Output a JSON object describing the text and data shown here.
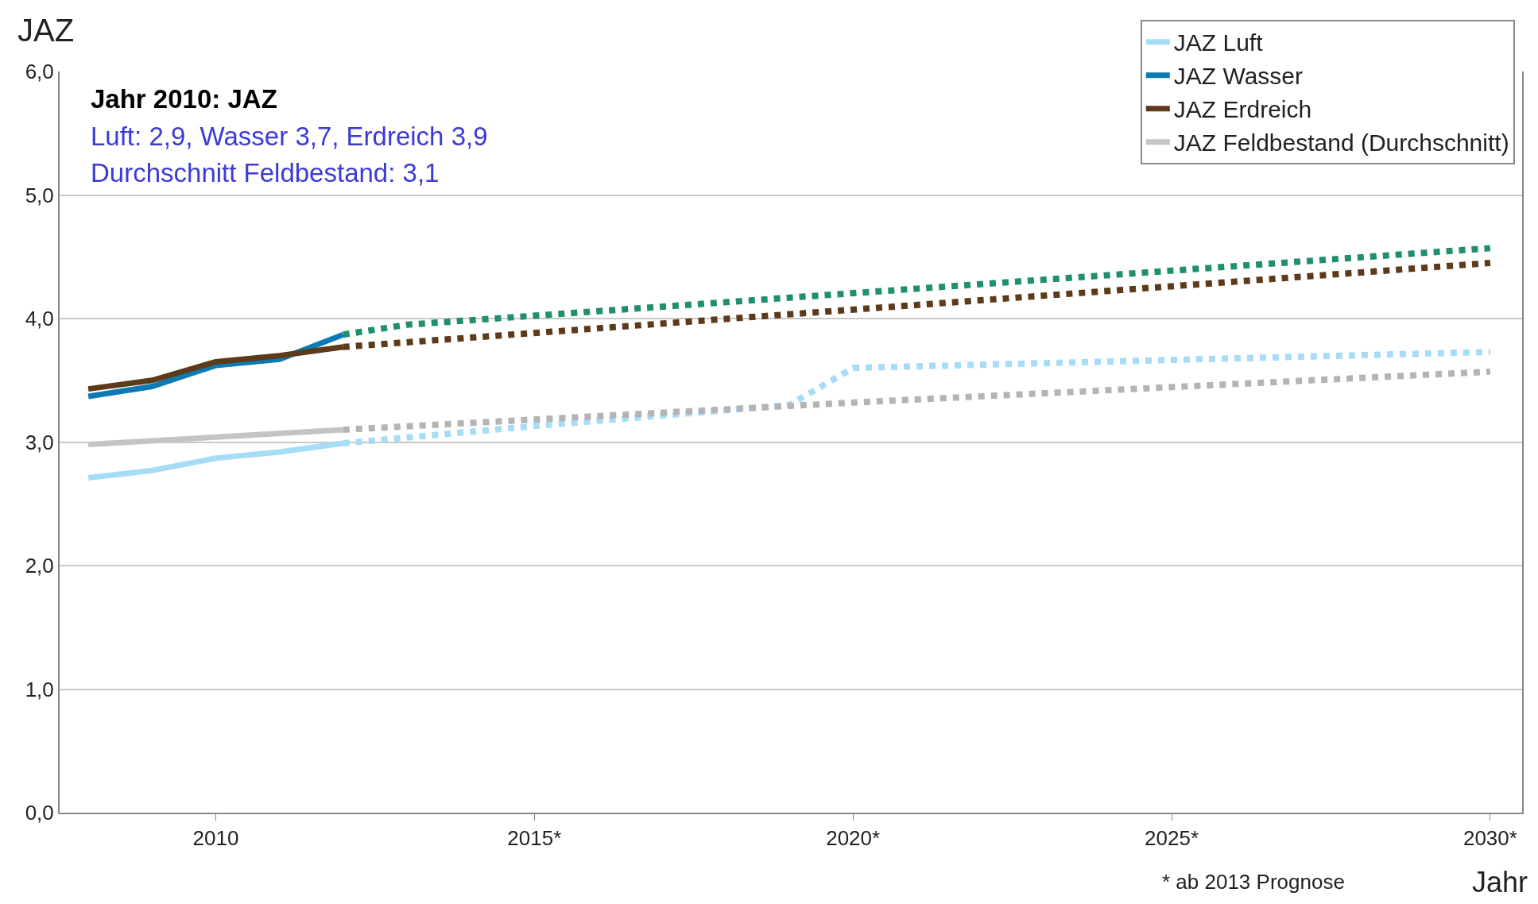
{
  "chart_data": {
    "type": "line",
    "xlabel": "Jahr",
    "ylabel": "JAZ",
    "xlim": [
      2007.55,
      2030.5
    ],
    "xticks": [
      2010,
      {
        "value": 2015,
        "label": "2015*"
      },
      {
        "value": 2020,
        "label": "2020*"
      },
      {
        "value": 2025,
        "label": "2025*"
      },
      {
        "value": 2030,
        "label": "2030*"
      }
    ],
    "ylim": [
      0,
      6
    ],
    "yticks": [
      {
        "value": 0,
        "label": "0,0"
      },
      {
        "value": 1,
        "label": "1,0"
      },
      {
        "value": 2,
        "label": "2,0"
      },
      {
        "value": 3,
        "label": "3,0"
      },
      {
        "value": 4,
        "label": "4,0"
      },
      {
        "value": 5,
        "label": "5,0"
      },
      {
        "value": 6,
        "label": "6,0"
      }
    ],
    "grid": "y",
    "legend": "top right",
    "marker": "none",
    "series": [
      {
        "name": "JAZ Luft",
        "color": "#a6dcf6",
        "line_style": "solid",
        "x": [
          2008,
          2009,
          2010,
          2011,
          2012
        ],
        "values": [
          2.71,
          2.77,
          2.87,
          2.92,
          2.99
        ]
      },
      {
        "name": "JAZ Wasser",
        "color": "#0e7ab4",
        "line_style": "solid",
        "x": [
          2008,
          2009,
          2010,
          2011,
          2012
        ],
        "values": [
          3.37,
          3.45,
          3.62,
          3.67,
          3.87
        ]
      },
      {
        "name": "JAZ Erdreich",
        "color": "#5c3a1a",
        "line_style": "solid",
        "x": [
          2008,
          2009,
          2010,
          2011,
          2012
        ],
        "values": [
          3.43,
          3.5,
          3.65,
          3.7,
          3.77
        ]
      },
      {
        "name": "JAZ Feldbestand (Durchschnitt)",
        "color": "#c4c4c4",
        "line_style": "solid",
        "x": [
          2008,
          2010,
          2012
        ],
        "values": [
          2.98,
          3.04,
          3.1
        ]
      },
      {
        "color": "#a6dcf6",
        "line_style": "dotted",
        "x": [
          2012,
          2015,
          2019,
          2020,
          2030
        ],
        "values": [
          2.99,
          3.13,
          3.3,
          3.6,
          3.73
        ]
      },
      {
        "color": "#1f8f6f",
        "line_style": "dotted",
        "x": [
          2012,
          2013,
          2030
        ],
        "values": [
          3.87,
          3.95,
          4.57
        ]
      },
      {
        "color": "#5c3a1a",
        "line_style": "dotted",
        "x": [
          2012,
          2030
        ],
        "values": [
          3.77,
          4.45
        ]
      },
      {
        "color": "#b4b4b4",
        "line_style": "dotted",
        "x": [
          2012,
          2020,
          2030
        ],
        "values": [
          3.1,
          3.32,
          3.57
        ]
      }
    ],
    "annotations": [
      "Jahr 2010: JAZ",
      "Luft: 2,9, Wasser 3,7, Erdreich 3,9",
      "Durchschnitt Feldbestand: 3,1",
      "* ab 2013 Prognose"
    ]
  }
}
